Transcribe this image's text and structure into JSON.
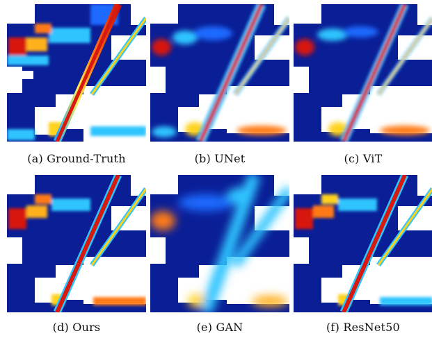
{
  "figure": {
    "panels": [
      {
        "id": "a",
        "caption": "(a)  Ground-Truth"
      },
      {
        "id": "b",
        "caption": "(b)  UNet"
      },
      {
        "id": "c",
        "caption": "(c)  ViT"
      },
      {
        "id": "d",
        "caption": "(d)  Ours"
      },
      {
        "id": "e",
        "caption": "(e)  GAN"
      },
      {
        "id": "f",
        "caption": "(f)  ResNet50"
      }
    ],
    "colormap": {
      "low": "#0a1e96",
      "mid_low": "#1f6bff",
      "mid": "#2ec5ff",
      "mid_high": "#ffd21a",
      "high": "#d7190f"
    }
  }
}
